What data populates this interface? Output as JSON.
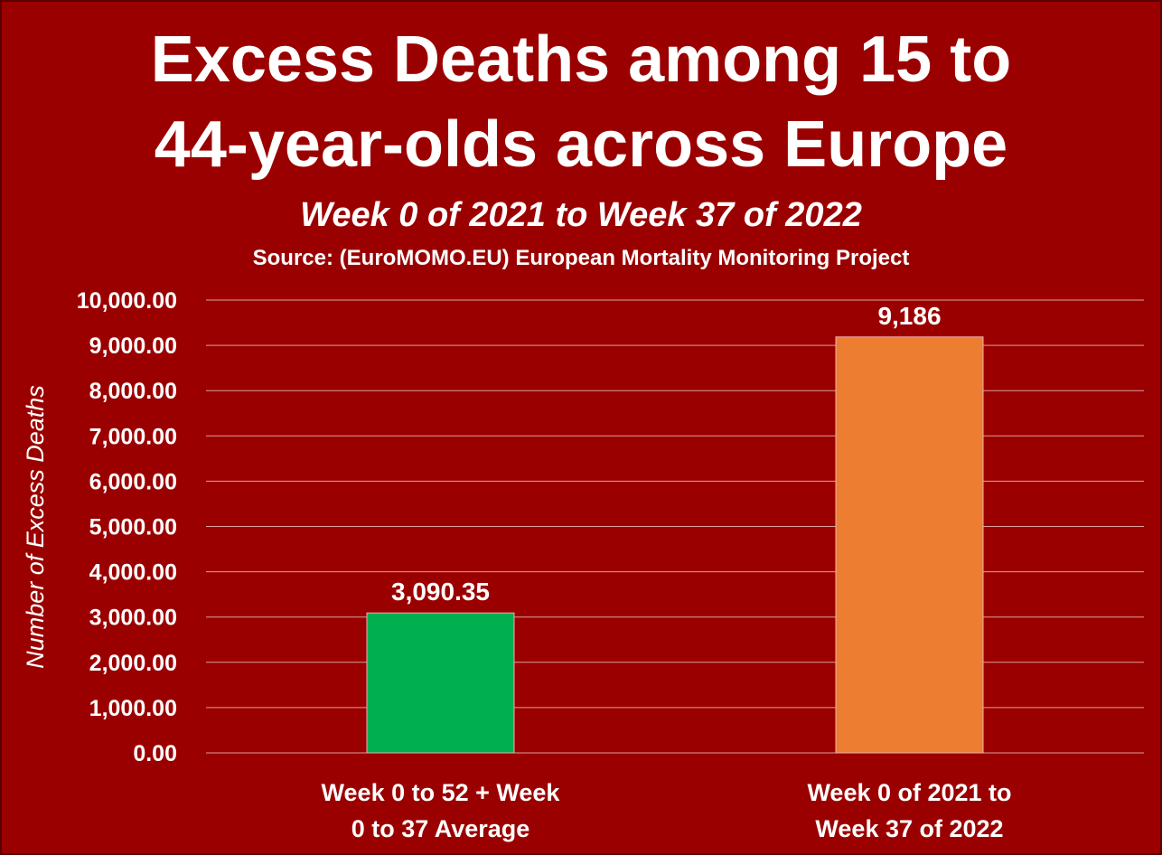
{
  "chart_data": {
    "type": "bar",
    "title_lines": [
      "Excess Deaths among 15 to",
      "44-year-olds across Europe"
    ],
    "subtitle": "Week 0 of 2021 to Week 37 of 2022",
    "source": "Source: (EuroMOMO.EU) European Mortality Monitoring Project",
    "ylabel": "Number of Excess Deaths",
    "xlabel": "",
    "ylim": [
      0,
      10000
    ],
    "y_ticks": [
      "0.00",
      "1,000.00",
      "2,000.00",
      "3,000.00",
      "4,000.00",
      "5,000.00",
      "6,000.00",
      "7,000.00",
      "8,000.00",
      "9,000.00",
      "10,000.00"
    ],
    "y_tick_values": [
      0,
      1000,
      2000,
      3000,
      4000,
      5000,
      6000,
      7000,
      8000,
      9000,
      10000
    ],
    "grid": true,
    "legend": "none",
    "categories": [
      [
        "Week 0 to 52 + Week",
        "0 to 37 Average"
      ],
      [
        "Week 0 of 2021 to",
        "Week 37 of 2022"
      ]
    ],
    "values": [
      3090.35,
      9186
    ],
    "data_labels": [
      "3,090.35",
      "9,186"
    ],
    "colors": [
      "#00b050",
      "#ed7d31"
    ]
  },
  "colors": {
    "background": "#9b0000",
    "text": "#ffffff",
    "gridline": "#d9a0a0"
  }
}
